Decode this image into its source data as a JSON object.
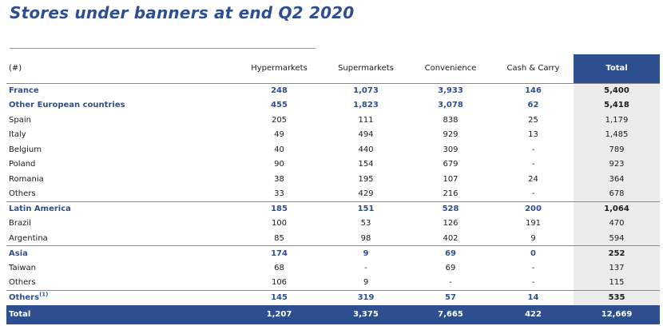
{
  "title": "Stores under banners at end Q2 2020",
  "header": {
    "unit": "(#)",
    "columns": [
      "Hypermarkets",
      "Supermarkets",
      "Convenience",
      "Cash & Carry",
      "Total"
    ]
  },
  "rows": [
    {
      "label": "France",
      "values": [
        "248",
        "1,073",
        "3,933",
        "146",
        "5,400"
      ]
    },
    {
      "label": "Other European countries",
      "values": [
        "455",
        "1,823",
        "3,078",
        "62",
        "5,418"
      ]
    },
    {
      "label": "Spain",
      "values": [
        "205",
        "111",
        "838",
        "25",
        "1,179"
      ]
    },
    {
      "label": "Italy",
      "values": [
        "49",
        "494",
        "929",
        "13",
        "1,485"
      ]
    },
    {
      "label": "Belgium",
      "values": [
        "40",
        "440",
        "309",
        "-",
        "789"
      ]
    },
    {
      "label": "Poland",
      "values": [
        "90",
        "154",
        "679",
        "-",
        "923"
      ]
    },
    {
      "label": "Romania",
      "values": [
        "38",
        "195",
        "107",
        "24",
        "364"
      ]
    },
    {
      "label": "Others",
      "values": [
        "33",
        "429",
        "216",
        "-",
        "678"
      ]
    },
    {
      "label": "Latin America",
      "values": [
        "185",
        "151",
        "528",
        "200",
        "1,064"
      ]
    },
    {
      "label": "Brazil",
      "values": [
        "100",
        "53",
        "126",
        "191",
        "470"
      ]
    },
    {
      "label": "Argentina",
      "values": [
        "85",
        "98",
        "402",
        "9",
        "594"
      ]
    },
    {
      "label": "Asia",
      "values": [
        "174",
        "9",
        "69",
        "0",
        "252"
      ]
    },
    {
      "label": "Taiwan",
      "values": [
        "68",
        "-",
        "69",
        "-",
        "137"
      ]
    },
    {
      "label": "Others",
      "values": [
        "106",
        "9",
        "-",
        "-",
        "115"
      ]
    },
    {
      "label": "Others",
      "footnote": "(1)",
      "values": [
        "145",
        "319",
        "57",
        "14",
        "535"
      ]
    }
  ],
  "total": {
    "label": "Total",
    "values": [
      "1,207",
      "3,375",
      "7,665",
      "422",
      "12,669"
    ]
  },
  "colors": {
    "brand_blue": "#2e4f8f",
    "total_col_bg": "#ececec",
    "rule": "#8a8a8a"
  }
}
